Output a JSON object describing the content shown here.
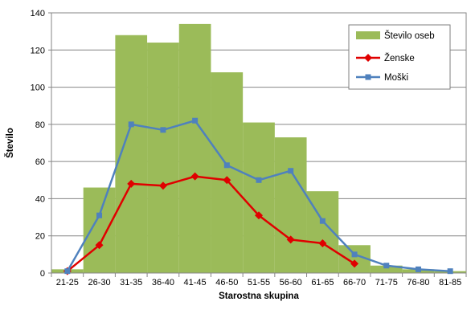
{
  "chart_data": {
    "type": "bar",
    "categories": [
      "21-25",
      "26-30",
      "31-35",
      "36-40",
      "41-45",
      "46-50",
      "51-55",
      "56-60",
      "61-65",
      "66-70",
      "71-75",
      "76-80",
      "81-85"
    ],
    "series": [
      {
        "name": "Število oseb",
        "kind": "bar",
        "color": "#9bbb59",
        "values": [
          2,
          46,
          128,
          124,
          134,
          108,
          81,
          73,
          44,
          15,
          4,
          2,
          1
        ]
      },
      {
        "name": "Ženske",
        "kind": "line",
        "marker": "diamond",
        "color": "#e00000",
        "values": [
          1,
          15,
          48,
          47,
          52,
          50,
          31,
          18,
          16,
          5,
          null,
          null,
          null
        ]
      },
      {
        "name": "Moški",
        "kind": "line",
        "marker": "square",
        "color": "#4f81bd",
        "values": [
          1,
          31,
          80,
          77,
          82,
          58,
          50,
          55,
          28,
          10,
          4,
          2,
          1
        ]
      }
    ],
    "xlabel": "Starostna skupina",
    "ylabel": "Število",
    "ylim": [
      0,
      140
    ],
    "yticks": [
      0,
      20,
      40,
      60,
      80,
      100,
      120,
      140
    ],
    "grid": true,
    "legend_position": "top-right"
  }
}
